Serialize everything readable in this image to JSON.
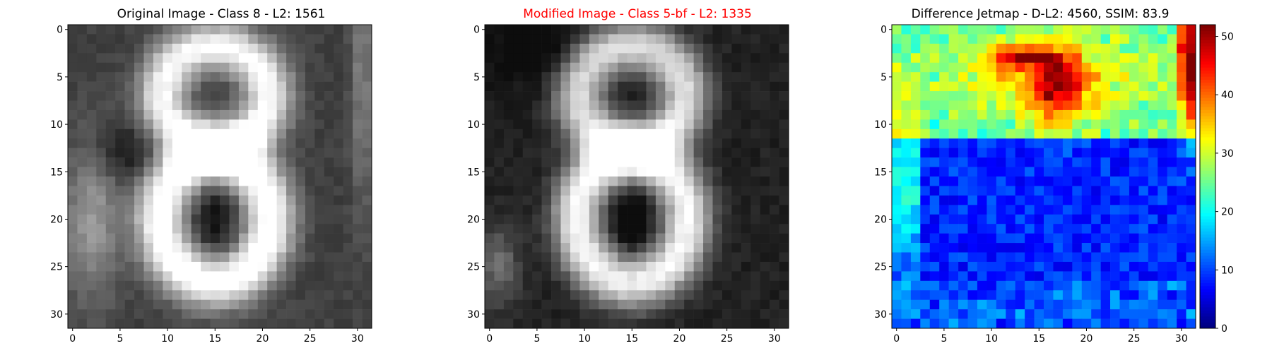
{
  "chart_data": [
    {
      "type": "heatmap",
      "title": "Original Image - Class 8 - L2: 1561",
      "title_color": "#000000",
      "colormap": "gray",
      "grid_size": [
        32,
        32
      ],
      "value_range": [
        0,
        255
      ],
      "x_ticks": [
        "0",
        "5",
        "10",
        "15",
        "20",
        "25",
        "30"
      ],
      "y_ticks": [
        "0",
        "5",
        "10",
        "15",
        "20",
        "25",
        "30"
      ],
      "subject": "digit 8"
    },
    {
      "type": "heatmap",
      "title": "Modified Image - Class 5-bf - L2: 1335",
      "title_color": "#ff0000",
      "colormap": "gray",
      "grid_size": [
        32,
        32
      ],
      "value_range": [
        0,
        255
      ],
      "x_ticks": [
        "0",
        "5",
        "10",
        "15",
        "20",
        "25",
        "30"
      ],
      "y_ticks": [
        "0",
        "5",
        "10",
        "15",
        "20",
        "25",
        "30"
      ],
      "subject": "digit 8, darker"
    },
    {
      "type": "heatmap",
      "title": "Difference Jetmap - D-L2: 4560, SSIM: 83.9",
      "title_color": "#000000",
      "colormap": "jet",
      "grid_size": [
        32,
        32
      ],
      "value_range": [
        0,
        52
      ],
      "x_ticks": [
        "0",
        "5",
        "10",
        "15",
        "20",
        "25",
        "30"
      ],
      "y_ticks": [
        "0",
        "5",
        "10",
        "15",
        "20",
        "25",
        "30"
      ],
      "colorbar_ticks": [
        "0",
        "10",
        "20",
        "30",
        "40",
        "50"
      ]
    }
  ]
}
